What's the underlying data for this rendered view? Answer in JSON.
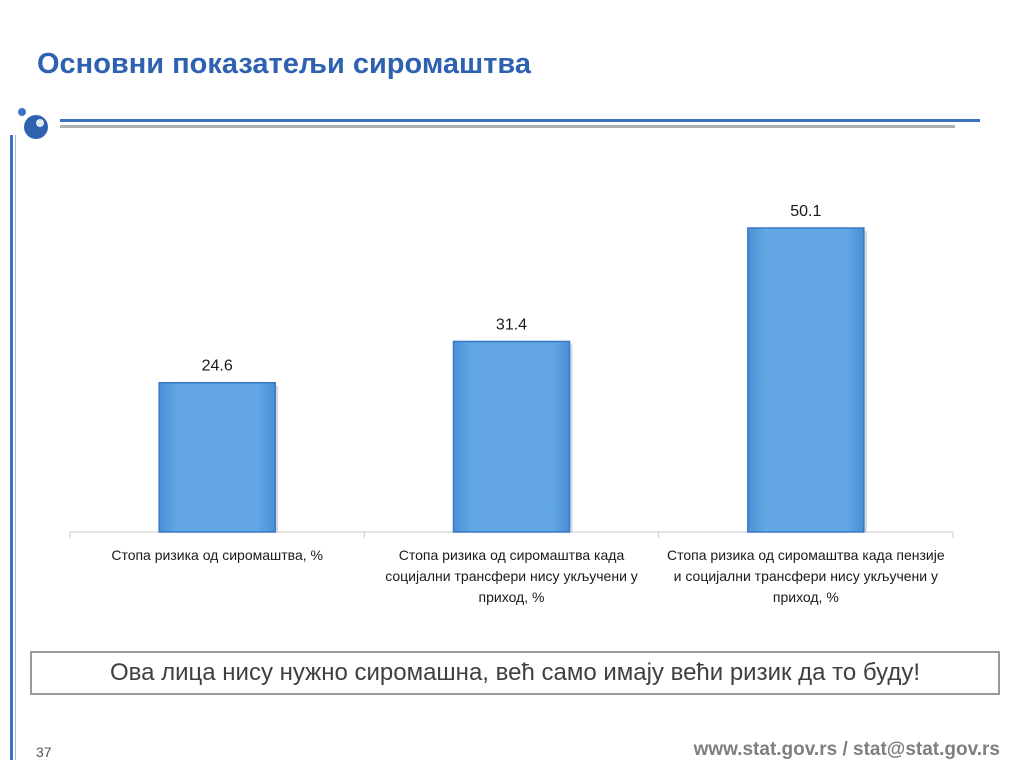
{
  "slide": {
    "title": "Основни показатељи сиромаштва",
    "note": "Ова лица нису нужно сиромашна, већ само имају већи ризик да то буду!",
    "page_number": "37",
    "footer": "www.stat.gov.rs / stat@stat.gov.rs"
  },
  "colors": {
    "title": "#2e62b0",
    "bar_fill": "#62a6e4",
    "bar_edge": "#3a78c0",
    "accent_line": "#3c72c4"
  },
  "chart_data": {
    "type": "bar",
    "categories": [
      "Стопа ризика од сиромаштва, %",
      "Стопа ризика од сиромаштва када социјални трансфери нису укључени у приход, %",
      "Стопа ризика од сиромаштва када пензије и социјални трансфери нису укључени у приход, %"
    ],
    "values": [
      24.6,
      31.4,
      50.1
    ],
    "data_labels": [
      "24.6",
      "31.4",
      "50.1"
    ],
    "ylim": [
      0,
      56
    ],
    "grid": false,
    "legend": "none"
  }
}
